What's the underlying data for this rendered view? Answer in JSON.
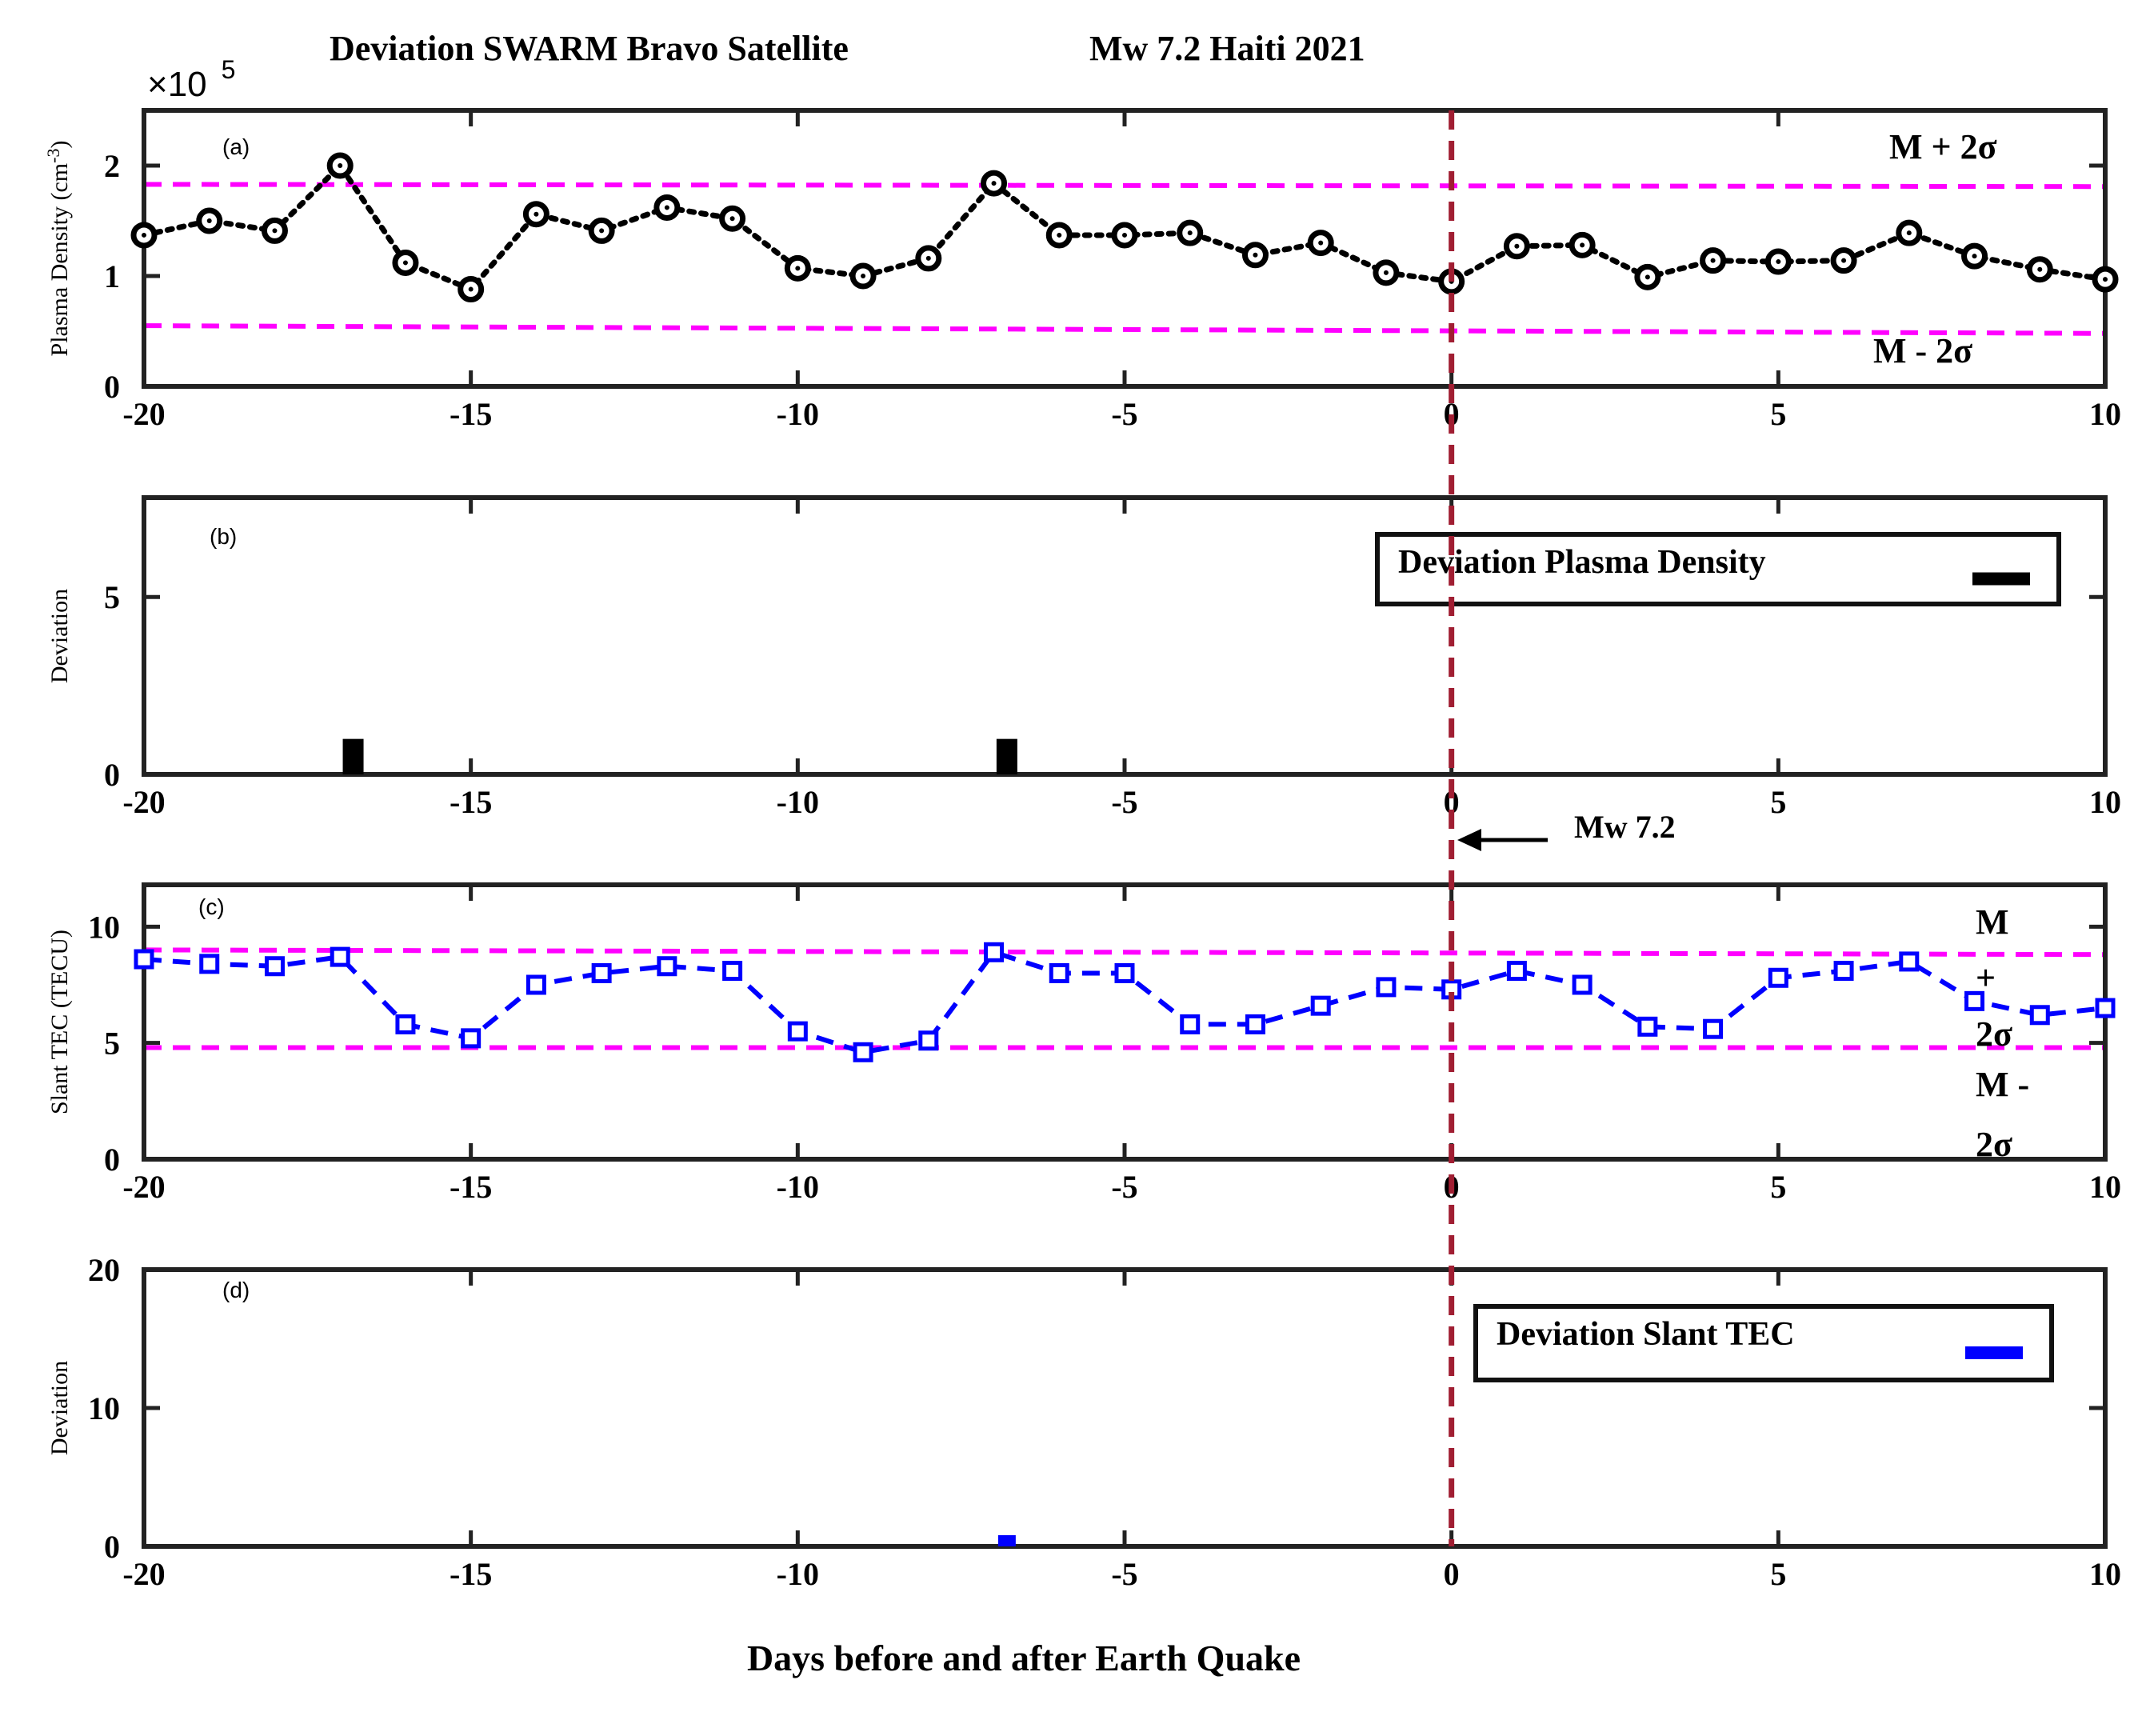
{
  "title_left": "Deviation  SWARM Bravo Satellite",
  "title_right": "Mw 7.2 Haiti 2021",
  "xlabel": "Days before and after Earth Quake",
  "quake_marker": {
    "label": "Mw 7.2",
    "day": 0
  },
  "colors": {
    "density": "#000000",
    "tec": "#0000ff",
    "bounds": "#ff00ff",
    "quake_line": "#a01e32"
  },
  "chart_data": [
    {
      "id": "a",
      "type": "line",
      "panel_label": "(a)",
      "ylabel": "Plasma Density (cm",
      "ylabel_sup": "-3",
      "ylabel_tail": ")",
      "exponent_base": "×10",
      "exponent_power": "5",
      "xlim": [
        -20,
        10
      ],
      "ylim": [
        0,
        2.5
      ],
      "xticks": [
        -20,
        -15,
        -10,
        -5,
        0,
        5,
        10
      ],
      "yticks": [
        0,
        1,
        2
      ],
      "x": [
        -20,
        -19,
        -18,
        -17,
        -16,
        -15,
        -14,
        -13,
        -12,
        -11,
        -10,
        -9,
        -8,
        -7,
        -6,
        -5,
        -4,
        -3,
        -2,
        -1,
        0,
        1,
        2,
        3,
        4,
        5,
        6,
        7,
        8,
        9,
        10
      ],
      "series": [
        {
          "name": "Plasma Density",
          "marker": "circle",
          "line": "dotted",
          "values": [
            1.37,
            1.5,
            1.41,
            2.0,
            1.12,
            0.88,
            1.56,
            1.41,
            1.62,
            1.52,
            1.07,
            1.0,
            1.16,
            1.84,
            1.37,
            1.37,
            1.39,
            1.19,
            1.3,
            1.03,
            0.95,
            1.27,
            1.28,
            0.99,
            1.14,
            1.13,
            1.14,
            1.39,
            1.18,
            1.06,
            0.97
          ]
        }
      ],
      "upper_bound": {
        "label": "M + 2σ",
        "start": 1.83,
        "end": 1.81
      },
      "lower_bound": {
        "label": "M - 2σ",
        "start": 0.55,
        "end": 0.48
      }
    },
    {
      "id": "b",
      "type": "bar",
      "panel_label": "(b)",
      "ylabel": "Deviation",
      "xlim": [
        -20,
        10
      ],
      "ylim": [
        0,
        7.8
      ],
      "xticks": [
        -20,
        -15,
        -10,
        -5,
        0,
        5,
        10
      ],
      "yticks": [
        0,
        5
      ],
      "legend": "Deviation Plasma Density",
      "bars": [
        {
          "x": -16.8,
          "value": 1
        },
        {
          "x": -6.8,
          "value": 1
        }
      ]
    },
    {
      "id": "c",
      "type": "line",
      "panel_label": "(c)",
      "ylabel": "Slant TEC (TECU)",
      "xlim": [
        -20,
        10
      ],
      "ylim": [
        0,
        11.8
      ],
      "xticks": [
        -20,
        -15,
        -10,
        -5,
        0,
        5,
        10
      ],
      "yticks": [
        0,
        5,
        10
      ],
      "x": [
        -20,
        -19,
        -18,
        -17,
        -16,
        -15,
        -14,
        -13,
        -12,
        -11,
        -10,
        -9,
        -8,
        -7,
        -6,
        -5,
        -4,
        -3,
        -2,
        -1,
        0,
        1,
        2,
        3,
        4,
        5,
        6,
        7,
        8,
        9,
        10
      ],
      "series": [
        {
          "name": "Slant TEC",
          "marker": "square",
          "line": "dashed",
          "values": [
            8.6,
            8.4,
            8.3,
            8.7,
            5.8,
            5.2,
            7.5,
            8.0,
            8.3,
            8.1,
            5.5,
            4.6,
            5.1,
            8.9,
            8.0,
            8.0,
            5.8,
            5.8,
            6.6,
            7.4,
            7.3,
            8.1,
            7.5,
            5.7,
            5.6,
            7.8,
            8.1,
            8.5,
            6.8,
            6.2,
            6.5
          ]
        }
      ],
      "upper_bound": {
        "label": "M + 2σ",
        "label_lines": [
          "M",
          "+",
          "2σ"
        ],
        "start": 9.0,
        "end": 8.8
      },
      "lower_bound": {
        "label": "M - 2σ",
        "label_lines": [
          "M -",
          "2σ"
        ],
        "start": 4.8,
        "end": 4.8
      }
    },
    {
      "id": "d",
      "type": "bar",
      "panel_label": "(d)",
      "ylabel": "Deviation",
      "xlim": [
        -20,
        10
      ],
      "ylim": [
        0,
        20
      ],
      "xticks": [
        -20,
        -15,
        -10,
        -5,
        0,
        5,
        10
      ],
      "yticks": [
        0,
        10,
        20
      ],
      "legend": "Deviation Slant TEC",
      "bars": [
        {
          "x": -6.8,
          "value": 0.5
        }
      ]
    }
  ]
}
